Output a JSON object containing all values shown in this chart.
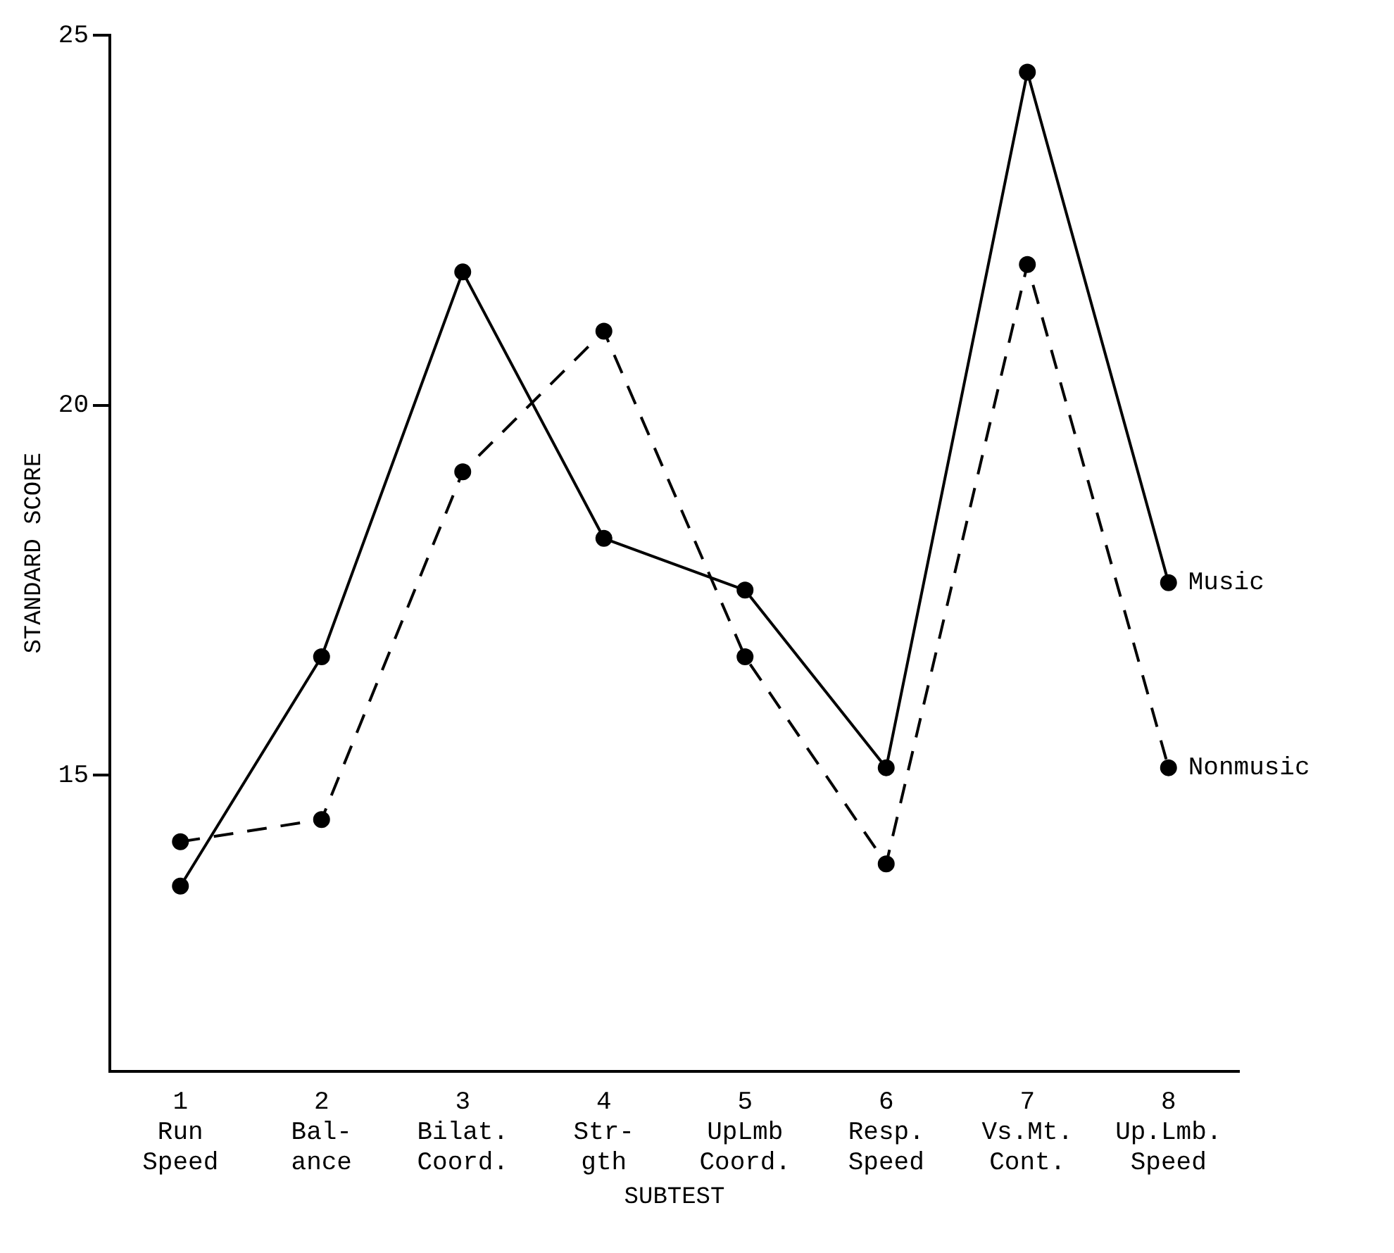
{
  "chart_data": {
    "type": "line",
    "xlabel": "SUBTEST",
    "ylabel": "STANDARD SCORE",
    "categories": [
      "1\nRun\nSpeed",
      "2\nBal-\nance",
      "3\nBilat.\nCoord.",
      "4\nStr-\ngth",
      "5\nUpLmb\nCoord.",
      "6\nResp.\nSpeed",
      "7\nVs.Mt.\nCont.",
      "8\nUp.Lmb.\nSpeed"
    ],
    "series": [
      {
        "name": "Music",
        "color": "#000000",
        "line_style": "solid",
        "values": [
          13.5,
          16.6,
          21.8,
          18.2,
          17.5,
          15.1,
          24.5,
          17.6
        ]
      },
      {
        "name": "Nonmusic",
        "color": "#000000",
        "line_style": "dashed",
        "values": [
          14.1,
          14.4,
          19.1,
          21.0,
          16.6,
          13.8,
          21.9,
          15.1
        ]
      }
    ],
    "ylim": [
      11,
      25
    ],
    "yticks": [
      15,
      20,
      25
    ],
    "grid": false,
    "legend": false,
    "marker": "circle"
  }
}
